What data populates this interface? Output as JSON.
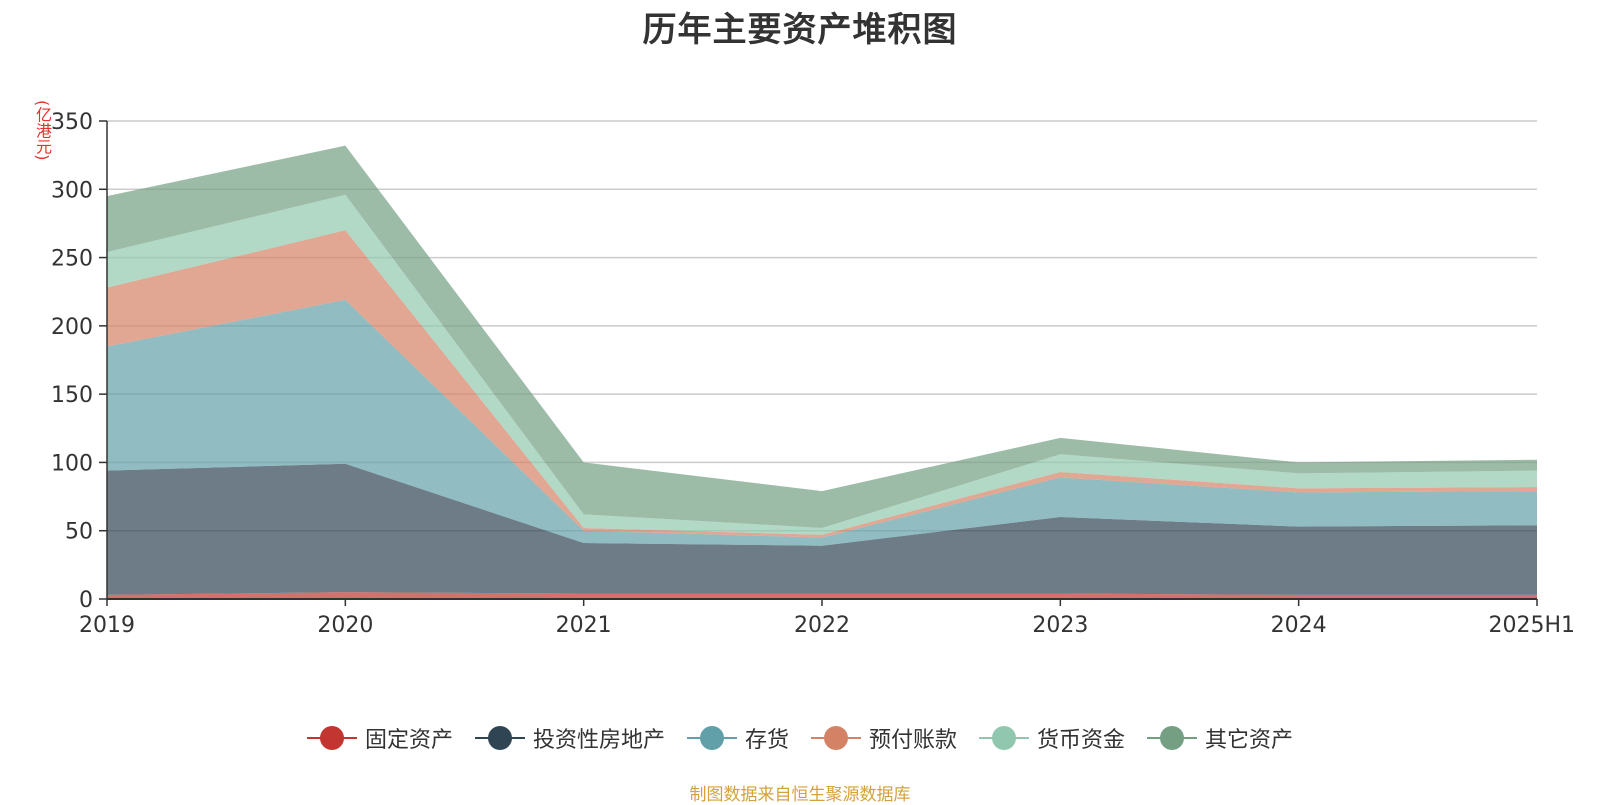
{
  "chart_data": {
    "type": "area",
    "title": "历年主要资产堆积图",
    "unit": "(亿港元)",
    "stacked": true,
    "categories": [
      "2019",
      "2020",
      "2021",
      "2022",
      "2023",
      "2024",
      "2025H1"
    ],
    "ylim": [
      0,
      350
    ],
    "yticks": [
      0,
      50,
      100,
      150,
      200,
      250,
      300,
      350
    ],
    "grid": true,
    "legend_position": "bottom",
    "series": [
      {
        "name": "固定资产",
        "color": "#c23531",
        "values": [
          3,
          5,
          4,
          4,
          4,
          3,
          3
        ]
      },
      {
        "name": "投资性房地产",
        "color": "#2f4554",
        "values": [
          91,
          94,
          37,
          35,
          56,
          50,
          51
        ]
      },
      {
        "name": "存货",
        "color": "#61a0a8",
        "values": [
          91,
          120,
          9,
          6,
          29,
          25,
          25
        ]
      },
      {
        "name": "预付账款",
        "color": "#d48265",
        "values": [
          43,
          51,
          2,
          2,
          4,
          3,
          3
        ]
      },
      {
        "name": "货币资金",
        "color": "#91c7ae",
        "values": [
          26,
          26,
          10,
          5,
          13,
          11,
          12
        ]
      },
      {
        "name": "其它资产",
        "color": "#749f83",
        "values": [
          41,
          36,
          38,
          27,
          12,
          8,
          8
        ]
      }
    ]
  },
  "source_note": "制图数据来自恒生聚源数据库"
}
